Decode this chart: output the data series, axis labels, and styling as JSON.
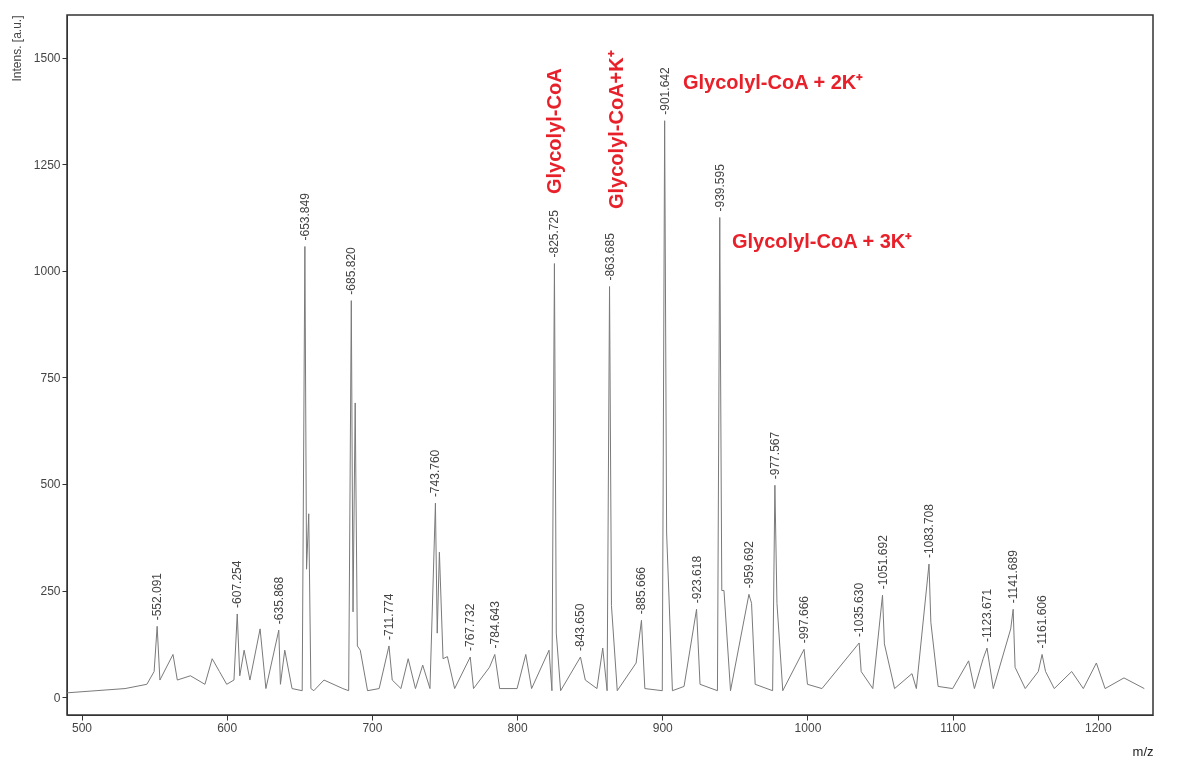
{
  "chart_data": {
    "type": "line",
    "xlabel": "m/z",
    "ylabel": "Intens. [a.u.]",
    "color": "#7a7a7a",
    "xlim": [
      490,
      1238
    ],
    "ylim": [
      -42,
      1600
    ],
    "xticks": [
      500,
      600,
      700,
      800,
      900,
      1000,
      1100,
      1200
    ],
    "yticks": [
      0,
      250,
      500,
      750,
      1000,
      1250,
      1500
    ],
    "x": [
      490,
      510,
      530,
      545,
      550,
      552.091,
      554,
      560,
      563,
      566,
      575,
      585,
      590,
      595,
      600,
      605,
      607.254,
      609,
      612,
      616,
      623,
      627,
      635.868,
      637,
      640,
      645,
      652,
      653.849,
      655,
      656.5,
      658,
      660,
      667,
      680,
      684,
      685.82,
      687,
      688.5,
      690,
      692,
      697,
      705,
      711.774,
      714,
      720,
      725,
      730,
      735,
      740,
      743.76,
      745,
      746.5,
      749,
      752,
      757,
      767.732,
      770,
      781,
      784.643,
      788,
      800,
      806,
      810,
      822,
      824,
      825.725,
      827,
      830,
      843.65,
      847,
      855,
      859,
      862,
      863.685,
      865,
      869,
      882,
      885.666,
      888,
      900,
      901.642,
      903,
      907,
      915,
      923.618,
      926,
      938,
      939.595,
      941,
      942.5,
      947,
      959.692,
      961.5,
      964,
      976,
      977.567,
      979,
      983,
      997.666,
      1000,
      1010,
      1035.63,
      1037,
      1045,
      1051.692,
      1053,
      1060,
      1072,
      1075,
      1083.708,
      1085,
      1090,
      1100,
      1111,
      1115,
      1121,
      1123.671,
      1128,
      1140,
      1141.689,
      1143,
      1150,
      1159,
      1161.606,
      1164,
      1170,
      1182,
      1190,
      1199,
      1205,
      1218,
      1232
    ],
    "values": [
      10,
      15,
      20,
      30,
      60,
      166,
      40,
      80,
      100,
      40,
      50,
      30,
      90,
      60,
      30,
      40,
      195,
      50,
      110,
      40,
      160,
      20,
      157,
      30,
      110,
      20,
      15,
      1057,
      300,
      430,
      20,
      15,
      40,
      20,
      15,
      930,
      200,
      690,
      120,
      110,
      15,
      20,
      120,
      40,
      20,
      90,
      20,
      75,
      20,
      455,
      150,
      340,
      90,
      95,
      20,
      94,
      20,
      70,
      100,
      20,
      20,
      100,
      20,
      110,
      15,
      1017,
      150,
      15,
      94,
      40,
      20,
      115,
      15,
      963,
      215,
      15,
      80,
      180,
      20,
      15,
      1352,
      385,
      15,
      25,
      206,
      30,
      15,
      1125,
      250,
      250,
      15,
      241,
      220,
      30,
      15,
      497,
      220,
      15,
      112,
      30,
      20,
      127,
      60,
      20,
      239,
      125,
      20,
      55,
      20,
      312,
      175,
      25,
      20,
      85,
      20,
      90,
      115,
      20,
      160,
      206,
      70,
      20,
      60,
      100,
      60,
      20,
      60,
      20,
      80,
      20,
      45,
      20
    ],
    "annotations": [
      {
        "text": "-552.091",
        "x": 552.091,
        "y": 166
      },
      {
        "text": "-607.254",
        "x": 607.254,
        "y": 195
      },
      {
        "text": "-635.868",
        "x": 635.868,
        "y": 157
      },
      {
        "text": "-653.849",
        "x": 653.849,
        "y": 1057
      },
      {
        "text": "-685.820",
        "x": 685.82,
        "y": 930
      },
      {
        "text": "-711.774",
        "x": 711.774,
        "y": 120
      },
      {
        "text": "-743.760",
        "x": 743.76,
        "y": 455
      },
      {
        "text": "-767.732",
        "x": 767.732,
        "y": 94
      },
      {
        "text": "-784.643",
        "x": 784.643,
        "y": 100
      },
      {
        "text": "-825.725",
        "x": 825.725,
        "y": 1017
      },
      {
        "text": "-843.650",
        "x": 843.65,
        "y": 94
      },
      {
        "text": "-863.685",
        "x": 863.685,
        "y": 963
      },
      {
        "text": "-885.666",
        "x": 885.666,
        "y": 180
      },
      {
        "text": "-901.642",
        "x": 901.642,
        "y": 1352
      },
      {
        "text": "-923.618",
        "x": 923.618,
        "y": 206
      },
      {
        "text": "-939.595",
        "x": 939.595,
        "y": 1125
      },
      {
        "text": "-959.692",
        "x": 959.692,
        "y": 241
      },
      {
        "text": "-977.567",
        "x": 977.567,
        "y": 497
      },
      {
        "text": "-997.666",
        "x": 997.666,
        "y": 112
      },
      {
        "text": "-1035.630",
        "x": 1035.63,
        "y": 127
      },
      {
        "text": "-1051.692",
        "x": 1051.692,
        "y": 239
      },
      {
        "text": "-1083.708",
        "x": 1083.708,
        "y": 312
      },
      {
        "text": "-1123.671",
        "x": 1123.671,
        "y": 115
      },
      {
        "text": "-1141.689",
        "x": 1141.689,
        "y": 206
      },
      {
        "text": "-1161.606",
        "x": 1161.606,
        "y": 100
      },
      "Glycolyl-CoA",
      "Glycolyl-CoA+K⁺",
      "Glycolyl-CoA + 2K⁺",
      "Glycolyl-CoA + 3K⁺"
    ]
  }
}
